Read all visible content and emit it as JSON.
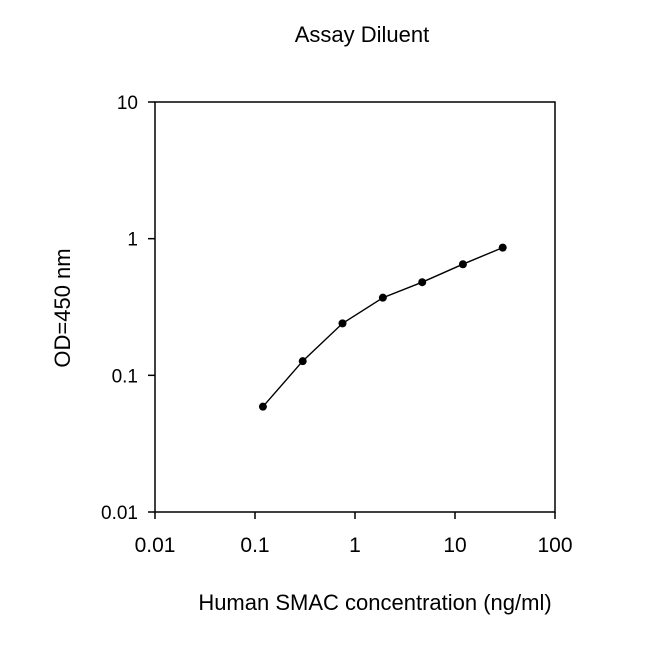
{
  "chart_data": {
    "type": "line",
    "title": "Assay Diluent",
    "xlabel": "Human SMAC concentration (ng/ml)",
    "ylabel": "OD=450 nm",
    "x_scale": "log",
    "y_scale": "log",
    "xlim": [
      0.01,
      100
    ],
    "ylim": [
      0.01,
      10
    ],
    "x_ticks": [
      0.01,
      0.1,
      1,
      10,
      100
    ],
    "x_tick_labels": [
      "0.01",
      "0.1",
      "1",
      "10",
      "100"
    ],
    "y_ticks": [
      0.01,
      0.1,
      1,
      10
    ],
    "y_tick_labels": [
      "0.01",
      "0.1",
      "1",
      "10"
    ],
    "grid": false,
    "series": [
      {
        "x": [
          0.12,
          0.3,
          0.75,
          1.9,
          4.7,
          12,
          30
        ],
        "y": [
          0.059,
          0.127,
          0.24,
          0.37,
          0.48,
          0.65,
          0.86
        ]
      }
    ],
    "colors": {
      "line": "#000000",
      "marker": "#000000",
      "axis": "#000000"
    }
  }
}
